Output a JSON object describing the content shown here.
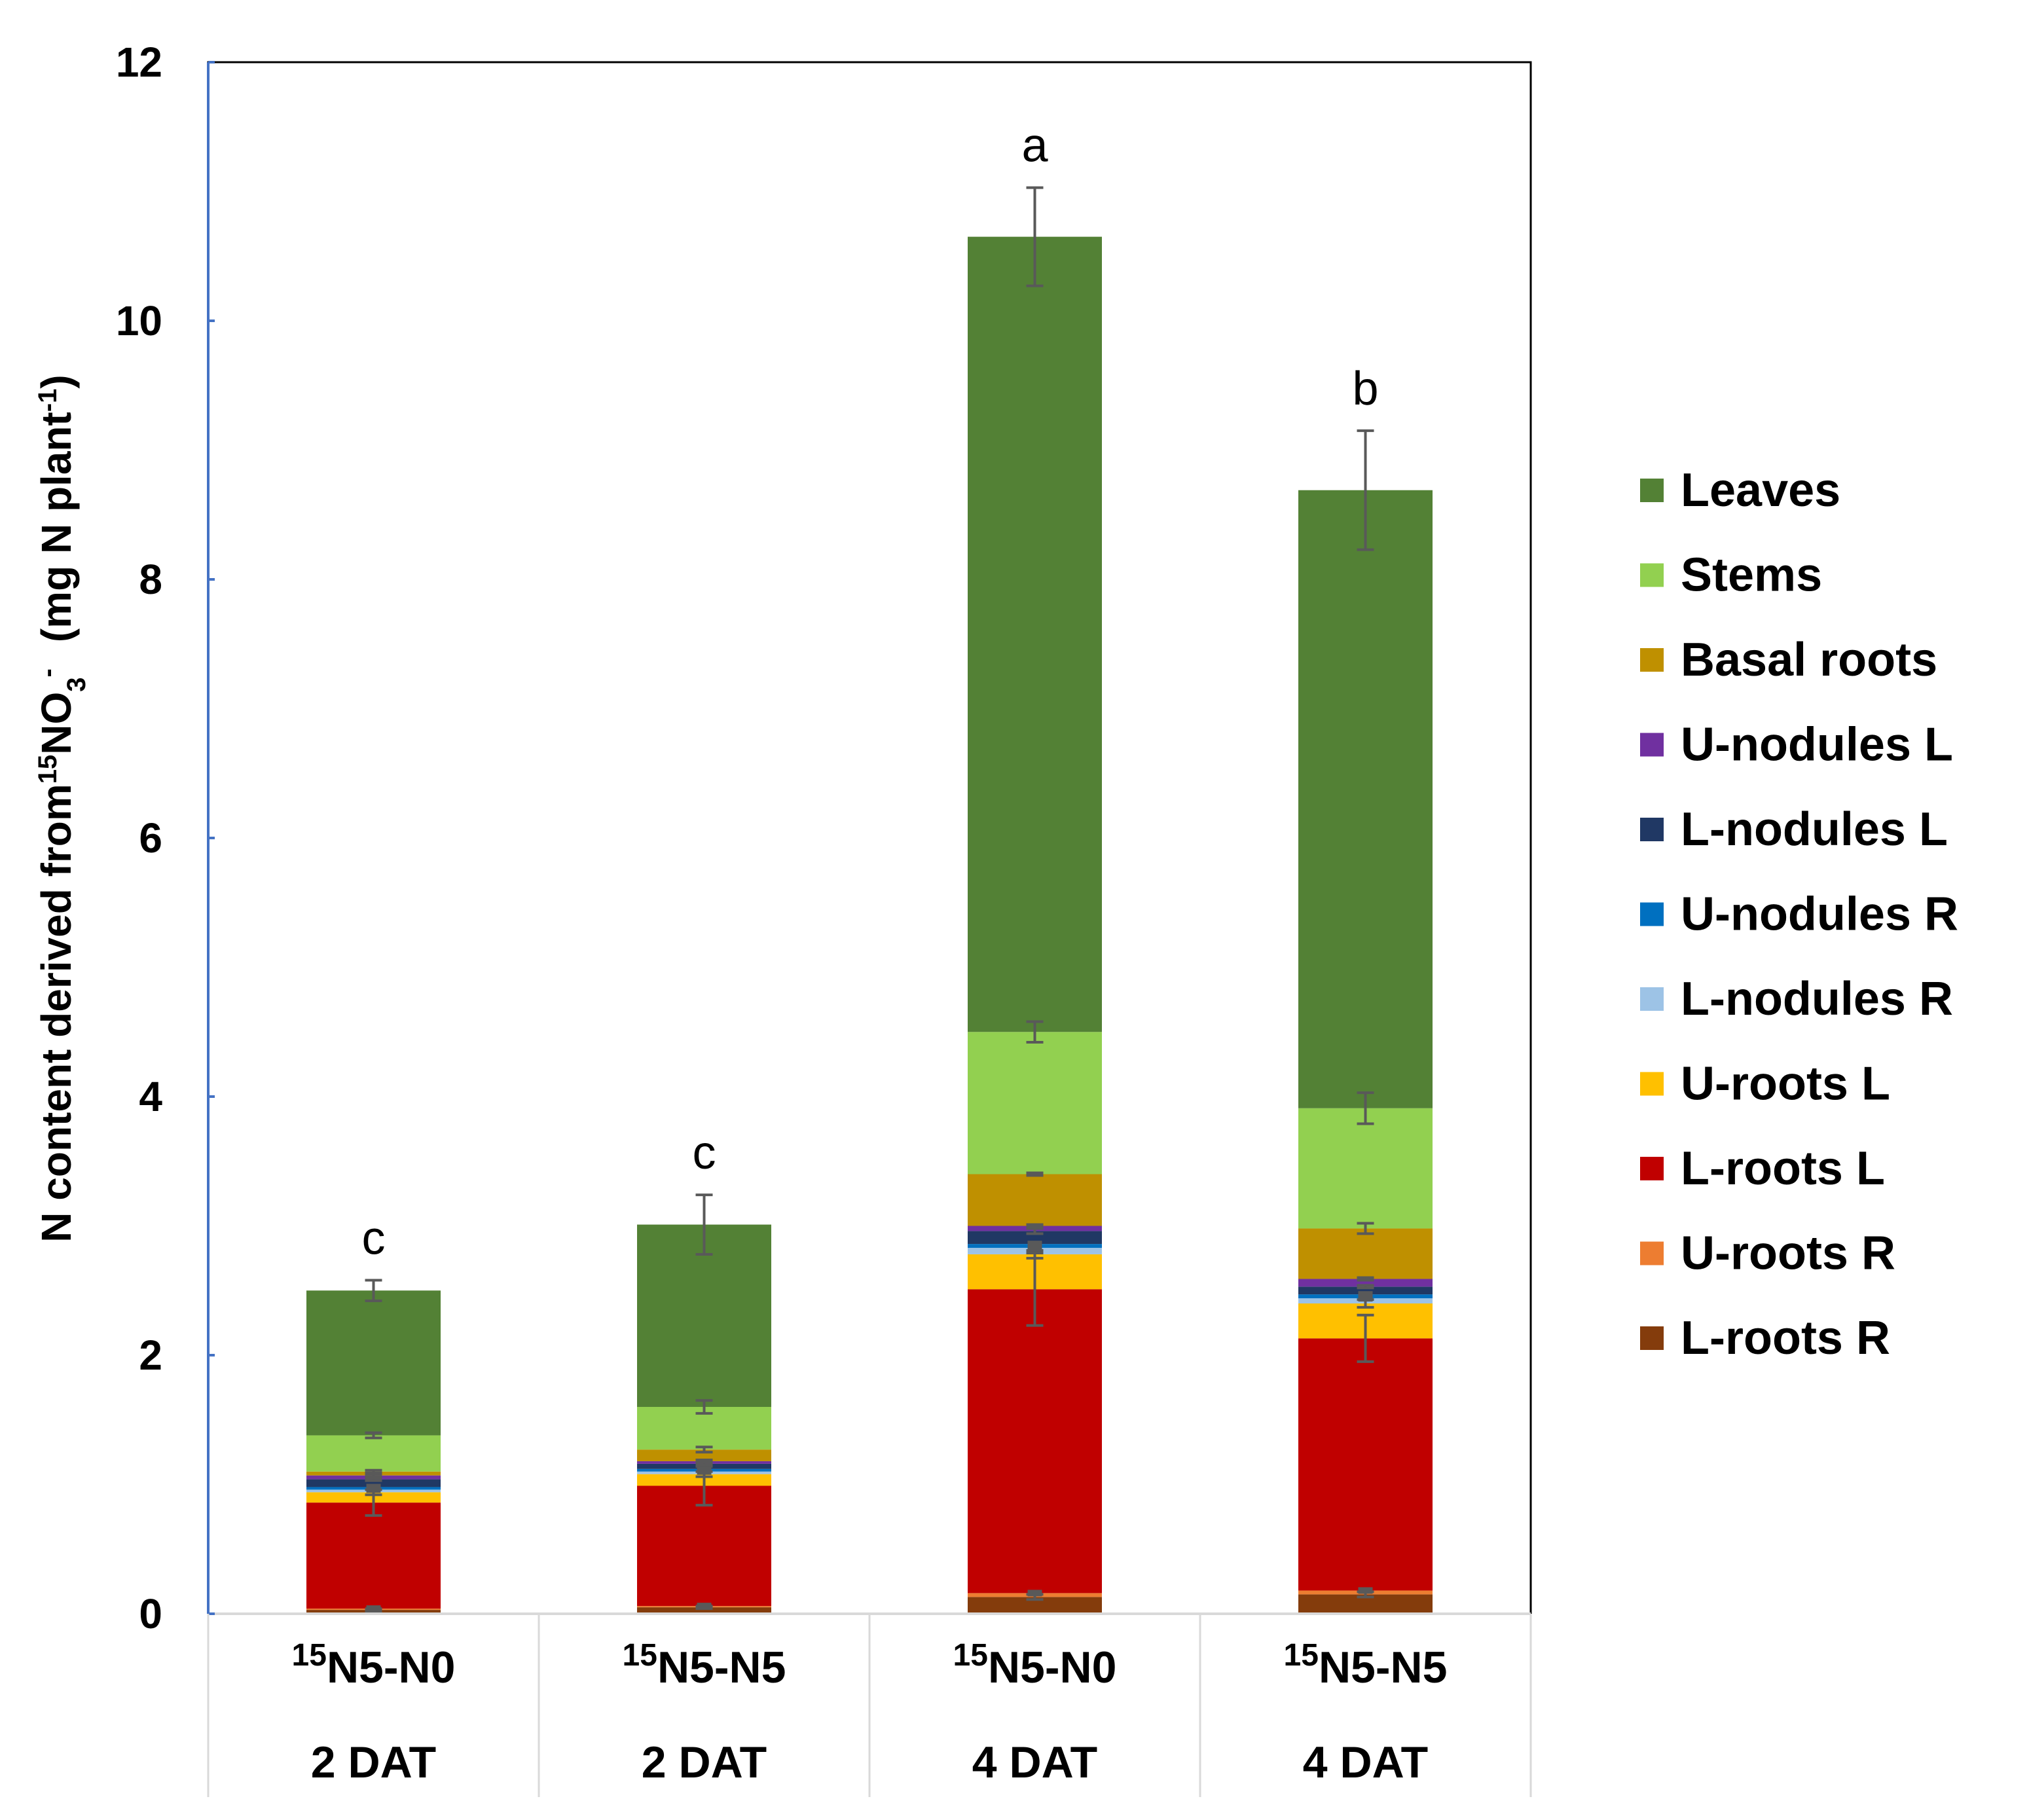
{
  "chart_data": {
    "type": "bar",
    "stacked": true,
    "title": "",
    "ylabel": {
      "prefix": "N content derived from",
      "iso": "15",
      "formula": "NO",
      "sub": "3",
      "charge": "-",
      "unit_open": "(mg N plant",
      "unit_exp": "-1",
      "unit_close": ")"
    },
    "ylim": [
      0,
      12
    ],
    "yticks": [
      "0",
      "2",
      "4",
      "6",
      "8",
      "10",
      "12"
    ],
    "categories": [
      {
        "iso": "15",
        "name": "N5-N0",
        "time": "2 DAT"
      },
      {
        "iso": "15",
        "name": "N5-N5",
        "time": "2 DAT"
      },
      {
        "iso": "15",
        "name": "N5-N0",
        "time": "4 DAT"
      },
      {
        "iso": "15",
        "name": "N5-N5",
        "time": "4 DAT"
      }
    ],
    "significance": [
      "c",
      "c",
      "a",
      "b"
    ],
    "legend_position": "right",
    "series": [
      {
        "name": "L-roots R",
        "color": "#843C0C",
        "values": [
          0.03,
          0.05,
          0.13,
          0.15
        ],
        "errors": [
          0.01,
          0.01,
          0.02,
          0.02
        ]
      },
      {
        "name": "U-roots R",
        "color": "#ED7D31",
        "values": [
          0.01,
          0.01,
          0.03,
          0.03
        ],
        "errors": [
          0,
          0,
          0,
          0
        ]
      },
      {
        "name": "L-roots L",
        "color": "#C00000",
        "values": [
          0.82,
          0.93,
          2.35,
          1.95
        ],
        "errors": [
          0.1,
          0.15,
          0.28,
          0.18
        ]
      },
      {
        "name": "U-roots L",
        "color": "#FFC000",
        "values": [
          0.08,
          0.09,
          0.27,
          0.27
        ],
        "errors": [
          0.02,
          0.02,
          0.03,
          0.03
        ]
      },
      {
        "name": "L-nodules R",
        "color": "#9DC3E6",
        "values": [
          0.02,
          0.02,
          0.05,
          0.04
        ],
        "errors": [
          0,
          0,
          0,
          0
        ]
      },
      {
        "name": "U-nodules R",
        "color": "#0070C0",
        "values": [
          0.02,
          0.02,
          0.03,
          0.03
        ],
        "errors": [
          0,
          0,
          0,
          0
        ]
      },
      {
        "name": "L-nodules L",
        "color": "#203864",
        "values": [
          0.06,
          0.04,
          0.1,
          0.06
        ],
        "errors": [
          0.01,
          0.01,
          0.02,
          0.01
        ]
      },
      {
        "name": "U-nodules L",
        "color": "#7030A0",
        "values": [
          0.03,
          0.02,
          0.04,
          0.06
        ],
        "errors": [
          0.01,
          0.01,
          0.01,
          0.01
        ]
      },
      {
        "name": "Basal roots",
        "color": "#BF9000",
        "values": [
          0.03,
          0.09,
          0.4,
          0.39
        ],
        "errors": [
          0.01,
          0.02,
          0.01,
          0.04
        ]
      },
      {
        "name": "Stems",
        "color": "#92D050",
        "values": [
          0.28,
          0.33,
          1.1,
          0.93
        ],
        "errors": [
          0.02,
          0.05,
          0.08,
          0.12
        ]
      },
      {
        "name": "Leaves",
        "color": "#538135",
        "values": [
          1.12,
          1.41,
          6.15,
          4.78
        ],
        "errors": [
          0.08,
          0.23,
          0.38,
          0.46
        ]
      }
    ],
    "legend_order": [
      "Leaves",
      "Stems",
      "Basal roots",
      "U-nodules L",
      "L-nodules L",
      "U-nodules R",
      "L-nodules R",
      "U-roots L",
      "L-roots L",
      "U-roots R",
      "L-roots R"
    ]
  }
}
